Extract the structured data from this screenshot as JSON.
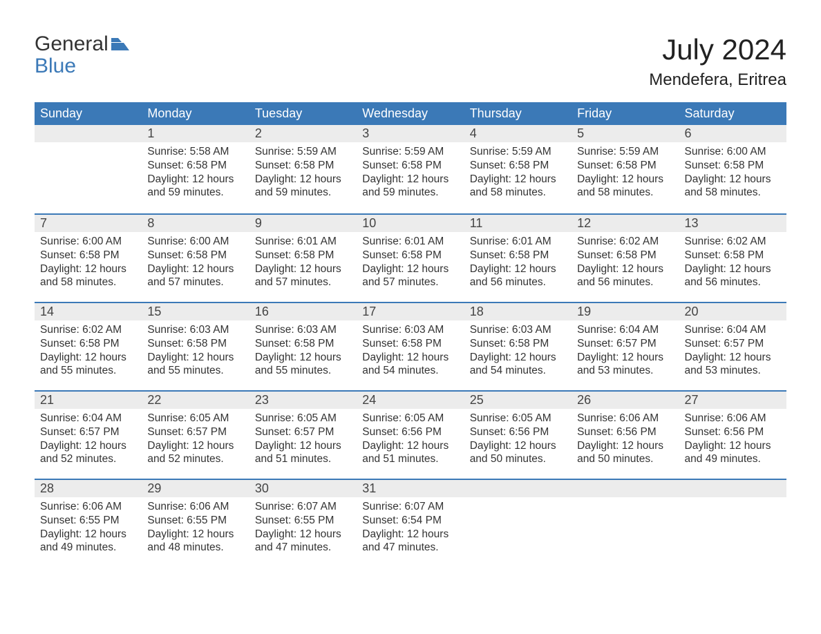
{
  "logo": {
    "word1": "General",
    "word2": "Blue"
  },
  "month_title": "July 2024",
  "location": "Mendefera, Eritrea",
  "colors": {
    "header_bg": "#3b79b7",
    "header_text": "#ffffff",
    "daynum_bg": "#ececec",
    "text": "#333333",
    "border": "#3b79b7",
    "background": "#ffffff"
  },
  "day_names": [
    "Sunday",
    "Monday",
    "Tuesday",
    "Wednesday",
    "Thursday",
    "Friday",
    "Saturday"
  ],
  "weeks": [
    [
      {
        "num": "",
        "sunrise": "",
        "sunset": "",
        "daylight": ""
      },
      {
        "num": "1",
        "sunrise": "Sunrise: 5:58 AM",
        "sunset": "Sunset: 6:58 PM",
        "daylight": "Daylight: 12 hours and 59 minutes."
      },
      {
        "num": "2",
        "sunrise": "Sunrise: 5:59 AM",
        "sunset": "Sunset: 6:58 PM",
        "daylight": "Daylight: 12 hours and 59 minutes."
      },
      {
        "num": "3",
        "sunrise": "Sunrise: 5:59 AM",
        "sunset": "Sunset: 6:58 PM",
        "daylight": "Daylight: 12 hours and 59 minutes."
      },
      {
        "num": "4",
        "sunrise": "Sunrise: 5:59 AM",
        "sunset": "Sunset: 6:58 PM",
        "daylight": "Daylight: 12 hours and 58 minutes."
      },
      {
        "num": "5",
        "sunrise": "Sunrise: 5:59 AM",
        "sunset": "Sunset: 6:58 PM",
        "daylight": "Daylight: 12 hours and 58 minutes."
      },
      {
        "num": "6",
        "sunrise": "Sunrise: 6:00 AM",
        "sunset": "Sunset: 6:58 PM",
        "daylight": "Daylight: 12 hours and 58 minutes."
      }
    ],
    [
      {
        "num": "7",
        "sunrise": "Sunrise: 6:00 AM",
        "sunset": "Sunset: 6:58 PM",
        "daylight": "Daylight: 12 hours and 58 minutes."
      },
      {
        "num": "8",
        "sunrise": "Sunrise: 6:00 AM",
        "sunset": "Sunset: 6:58 PM",
        "daylight": "Daylight: 12 hours and 57 minutes."
      },
      {
        "num": "9",
        "sunrise": "Sunrise: 6:01 AM",
        "sunset": "Sunset: 6:58 PM",
        "daylight": "Daylight: 12 hours and 57 minutes."
      },
      {
        "num": "10",
        "sunrise": "Sunrise: 6:01 AM",
        "sunset": "Sunset: 6:58 PM",
        "daylight": "Daylight: 12 hours and 57 minutes."
      },
      {
        "num": "11",
        "sunrise": "Sunrise: 6:01 AM",
        "sunset": "Sunset: 6:58 PM",
        "daylight": "Daylight: 12 hours and 56 minutes."
      },
      {
        "num": "12",
        "sunrise": "Sunrise: 6:02 AM",
        "sunset": "Sunset: 6:58 PM",
        "daylight": "Daylight: 12 hours and 56 minutes."
      },
      {
        "num": "13",
        "sunrise": "Sunrise: 6:02 AM",
        "sunset": "Sunset: 6:58 PM",
        "daylight": "Daylight: 12 hours and 56 minutes."
      }
    ],
    [
      {
        "num": "14",
        "sunrise": "Sunrise: 6:02 AM",
        "sunset": "Sunset: 6:58 PM",
        "daylight": "Daylight: 12 hours and 55 minutes."
      },
      {
        "num": "15",
        "sunrise": "Sunrise: 6:03 AM",
        "sunset": "Sunset: 6:58 PM",
        "daylight": "Daylight: 12 hours and 55 minutes."
      },
      {
        "num": "16",
        "sunrise": "Sunrise: 6:03 AM",
        "sunset": "Sunset: 6:58 PM",
        "daylight": "Daylight: 12 hours and 55 minutes."
      },
      {
        "num": "17",
        "sunrise": "Sunrise: 6:03 AM",
        "sunset": "Sunset: 6:58 PM",
        "daylight": "Daylight: 12 hours and 54 minutes."
      },
      {
        "num": "18",
        "sunrise": "Sunrise: 6:03 AM",
        "sunset": "Sunset: 6:58 PM",
        "daylight": "Daylight: 12 hours and 54 minutes."
      },
      {
        "num": "19",
        "sunrise": "Sunrise: 6:04 AM",
        "sunset": "Sunset: 6:57 PM",
        "daylight": "Daylight: 12 hours and 53 minutes."
      },
      {
        "num": "20",
        "sunrise": "Sunrise: 6:04 AM",
        "sunset": "Sunset: 6:57 PM",
        "daylight": "Daylight: 12 hours and 53 minutes."
      }
    ],
    [
      {
        "num": "21",
        "sunrise": "Sunrise: 6:04 AM",
        "sunset": "Sunset: 6:57 PM",
        "daylight": "Daylight: 12 hours and 52 minutes."
      },
      {
        "num": "22",
        "sunrise": "Sunrise: 6:05 AM",
        "sunset": "Sunset: 6:57 PM",
        "daylight": "Daylight: 12 hours and 52 minutes."
      },
      {
        "num": "23",
        "sunrise": "Sunrise: 6:05 AM",
        "sunset": "Sunset: 6:57 PM",
        "daylight": "Daylight: 12 hours and 51 minutes."
      },
      {
        "num": "24",
        "sunrise": "Sunrise: 6:05 AM",
        "sunset": "Sunset: 6:56 PM",
        "daylight": "Daylight: 12 hours and 51 minutes."
      },
      {
        "num": "25",
        "sunrise": "Sunrise: 6:05 AM",
        "sunset": "Sunset: 6:56 PM",
        "daylight": "Daylight: 12 hours and 50 minutes."
      },
      {
        "num": "26",
        "sunrise": "Sunrise: 6:06 AM",
        "sunset": "Sunset: 6:56 PM",
        "daylight": "Daylight: 12 hours and 50 minutes."
      },
      {
        "num": "27",
        "sunrise": "Sunrise: 6:06 AM",
        "sunset": "Sunset: 6:56 PM",
        "daylight": "Daylight: 12 hours and 49 minutes."
      }
    ],
    [
      {
        "num": "28",
        "sunrise": "Sunrise: 6:06 AM",
        "sunset": "Sunset: 6:55 PM",
        "daylight": "Daylight: 12 hours and 49 minutes."
      },
      {
        "num": "29",
        "sunrise": "Sunrise: 6:06 AM",
        "sunset": "Sunset: 6:55 PM",
        "daylight": "Daylight: 12 hours and 48 minutes."
      },
      {
        "num": "30",
        "sunrise": "Sunrise: 6:07 AM",
        "sunset": "Sunset: 6:55 PM",
        "daylight": "Daylight: 12 hours and 47 minutes."
      },
      {
        "num": "31",
        "sunrise": "Sunrise: 6:07 AM",
        "sunset": "Sunset: 6:54 PM",
        "daylight": "Daylight: 12 hours and 47 minutes."
      },
      {
        "num": "",
        "sunrise": "",
        "sunset": "",
        "daylight": ""
      },
      {
        "num": "",
        "sunrise": "",
        "sunset": "",
        "daylight": ""
      },
      {
        "num": "",
        "sunrise": "",
        "sunset": "",
        "daylight": ""
      }
    ]
  ]
}
